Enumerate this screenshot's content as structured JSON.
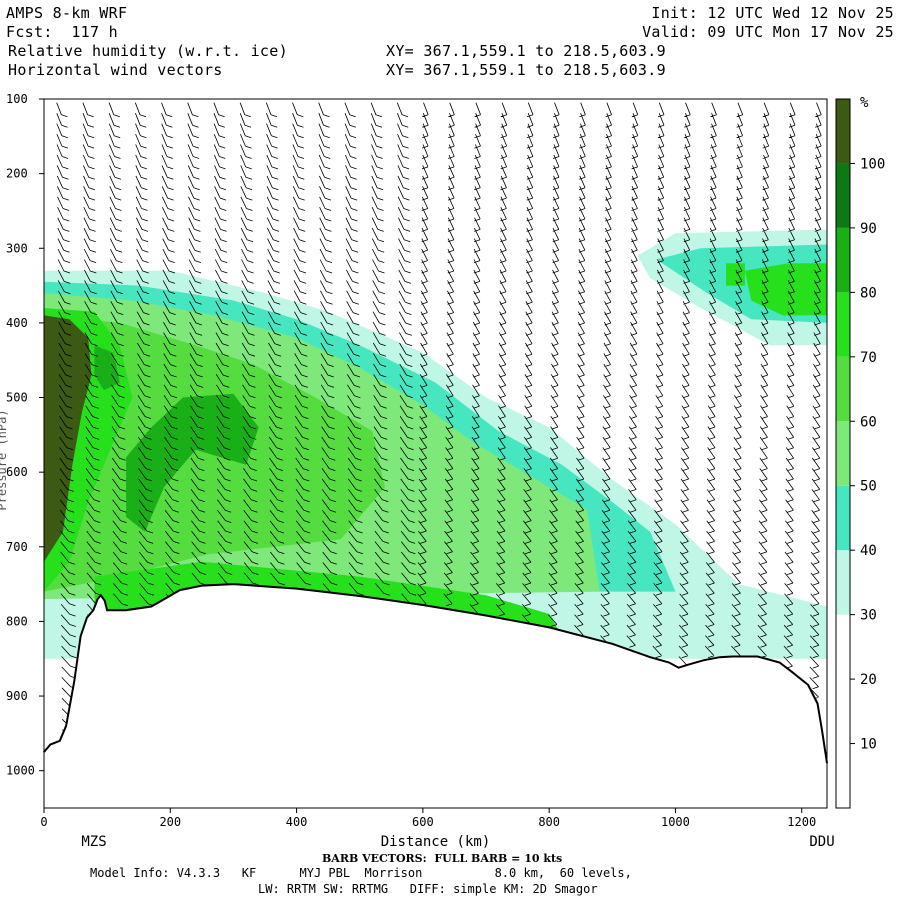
{
  "header": {
    "model": "AMPS 8-km WRF",
    "forecast": "Fcst:  117 h",
    "field1": "Relative humidity (w.r.t. ice)",
    "field2": "Horizontal wind vectors",
    "init": "Init: 12 UTC Wed 12 Nov 25",
    "valid": "Valid: 09 UTC Mon 17 Nov 25",
    "xy1": "XY= 367.1,559.1 to 218.5,603.9",
    "xy2": "XY= 367.1,559.1 to 218.5,603.9"
  },
  "footer": {
    "barb": "BARB VECTORS:  FULL BARB = 10 kts",
    "model_info": "Model Info: V4.3.3   KF      MYJ PBL  Morrison          8.0 km,  60 levels,",
    "physics": "LW: RRTM SW: RRTMG   DIFF: simple KM: 2D Smagor"
  },
  "colors": {
    "background": "#ffffff",
    "terrain_line": "#000000",
    "barbs": "#000000"
  },
  "chart_data": {
    "type": "heatmap",
    "title": "Relative humidity (w.r.t. ice)",
    "xlabel": "Distance (km)",
    "ylabel": "Pressure (hPa)",
    "xlim": [
      0,
      1240
    ],
    "ylim": [
      1050,
      100
    ],
    "x_ticks": [
      0,
      200,
      400,
      600,
      800,
      1000,
      1200
    ],
    "y_ticks": [
      100,
      200,
      300,
      400,
      500,
      600,
      700,
      800,
      900,
      1000
    ],
    "endpoint_labels": [
      "MZS",
      "DDU"
    ],
    "colorbar": {
      "unit": "%",
      "ticks": [
        10,
        20,
        30,
        40,
        50,
        60,
        70,
        80,
        90,
        100
      ],
      "levels": [
        {
          "min": 30,
          "max": 40,
          "color": "#bff6e5"
        },
        {
          "min": 40,
          "max": 50,
          "color": "#46e6c1"
        },
        {
          "min": 50,
          "max": 60,
          "color": "#7ee87a"
        },
        {
          "min": 60,
          "max": 70,
          "color": "#55dd40"
        },
        {
          "min": 70,
          "max": 80,
          "color": "#25e01a"
        },
        {
          "min": 80,
          "max": 90,
          "color": "#18b016"
        },
        {
          "min": 90,
          "max": 100,
          "color": "#0c7a12"
        },
        {
          "min": 100,
          "max": 110,
          "color": "#3c5a14"
        }
      ]
    },
    "terrain_profile": [
      [
        0,
        975
      ],
      [
        10,
        965
      ],
      [
        25,
        960
      ],
      [
        35,
        940
      ],
      [
        48,
        880
      ],
      [
        58,
        820
      ],
      [
        68,
        795
      ],
      [
        78,
        785
      ],
      [
        85,
        770
      ],
      [
        90,
        765
      ],
      [
        96,
        772
      ],
      [
        100,
        785
      ],
      [
        130,
        785
      ],
      [
        170,
        780
      ],
      [
        195,
        768
      ],
      [
        215,
        758
      ],
      [
        250,
        752
      ],
      [
        300,
        750
      ],
      [
        400,
        756
      ],
      [
        500,
        766
      ],
      [
        600,
        778
      ],
      [
        700,
        792
      ],
      [
        800,
        808
      ],
      [
        900,
        830
      ],
      [
        960,
        848
      ],
      [
        990,
        855
      ],
      [
        1005,
        862
      ],
      [
        1020,
        858
      ],
      [
        1045,
        852
      ],
      [
        1070,
        848
      ],
      [
        1090,
        847
      ],
      [
        1130,
        847
      ],
      [
        1165,
        855
      ],
      [
        1185,
        868
      ],
      [
        1210,
        885
      ],
      [
        1225,
        910
      ],
      [
        1232,
        945
      ],
      [
        1240,
        990
      ]
    ],
    "rh_regions": [
      {
        "rh": 35,
        "label": "moist layer above terrain",
        "polygon": [
          [
            0,
            330
          ],
          [
            200,
            330
          ],
          [
            350,
            360
          ],
          [
            450,
            385
          ],
          [
            600,
            440
          ],
          [
            700,
            500
          ],
          [
            800,
            540
          ],
          [
            900,
            610
          ],
          [
            1000,
            670
          ],
          [
            1100,
            750
          ],
          [
            1240,
            780
          ],
          [
            1240,
            850
          ],
          [
            0,
            850
          ]
        ]
      },
      {
        "rh": 35,
        "label": "upper moist layer right",
        "polygon": [
          [
            940,
            310
          ],
          [
            1000,
            280
          ],
          [
            1240,
            275
          ],
          [
            1240,
            430
          ],
          [
            1150,
            430
          ],
          [
            1040,
            380
          ],
          [
            960,
            340
          ]
        ]
      },
      {
        "rh": 45,
        "label": "mid layer",
        "polygon": [
          [
            0,
            345
          ],
          [
            150,
            350
          ],
          [
            300,
            370
          ],
          [
            400,
            395
          ],
          [
            500,
            430
          ],
          [
            620,
            480
          ],
          [
            720,
            545
          ],
          [
            820,
            590
          ],
          [
            900,
            640
          ],
          [
            960,
            680
          ],
          [
            1000,
            760
          ],
          [
            0,
            760
          ]
        ]
      },
      {
        "rh": 45,
        "label": "upper right",
        "polygon": [
          [
            970,
            315
          ],
          [
            1040,
            300
          ],
          [
            1240,
            295
          ],
          [
            1240,
            400
          ],
          [
            1120,
            395
          ],
          [
            1050,
            360
          ]
        ]
      },
      {
        "rh": 55,
        "label": "core",
        "polygon": [
          [
            0,
            360
          ],
          [
            140,
            370
          ],
          [
            270,
            390
          ],
          [
            400,
            420
          ],
          [
            500,
            460
          ],
          [
            600,
            510
          ],
          [
            680,
            560
          ],
          [
            780,
            610
          ],
          [
            860,
            650
          ],
          [
            880,
            760
          ],
          [
            0,
            770
          ]
        ]
      },
      {
        "rh": 75,
        "label": "upper right core",
        "polygon": [
          [
            1110,
            330
          ],
          [
            1180,
            320
          ],
          [
            1240,
            320
          ],
          [
            1240,
            390
          ],
          [
            1170,
            390
          ],
          [
            1120,
            370
          ]
        ]
      },
      {
        "rh": 65,
        "label": "wedge",
        "polygon": [
          [
            0,
            390
          ],
          [
            120,
            400
          ],
          [
            240,
            430
          ],
          [
            330,
            455
          ],
          [
            430,
            500
          ],
          [
            520,
            545
          ],
          [
            540,
            620
          ],
          [
            470,
            690
          ],
          [
            260,
            710
          ],
          [
            120,
            740
          ],
          [
            0,
            760
          ]
        ]
      },
      {
        "rh": 75,
        "label": "near surface band",
        "polygon": [
          [
            80,
            740
          ],
          [
            250,
            720
          ],
          [
            500,
            740
          ],
          [
            700,
            765
          ],
          [
            800,
            790
          ],
          [
            820,
            820
          ],
          [
            600,
            808
          ],
          [
            400,
            790
          ],
          [
            200,
            790
          ],
          [
            80,
            800
          ]
        ]
      },
      {
        "rh": 75,
        "label": "left column",
        "polygon": [
          [
            0,
            380
          ],
          [
            80,
            385
          ],
          [
            120,
            430
          ],
          [
            140,
            500
          ],
          [
            110,
            560
          ],
          [
            70,
            640
          ],
          [
            40,
            720
          ],
          [
            0,
            760
          ]
        ]
      },
      {
        "rh": 85,
        "label": "arc",
        "polygon": [
          [
            130,
            580
          ],
          [
            170,
            540
          ],
          [
            220,
            500
          ],
          [
            300,
            495
          ],
          [
            340,
            540
          ],
          [
            320,
            590
          ],
          [
            240,
            570
          ],
          [
            190,
            620
          ],
          [
            160,
            680
          ],
          [
            130,
            660
          ]
        ]
      },
      {
        "rh": 105,
        "label": "left column peak",
        "polygon": [
          [
            0,
            390
          ],
          [
            40,
            395
          ],
          [
            70,
            420
          ],
          [
            75,
            470
          ],
          [
            60,
            520
          ],
          [
            45,
            590
          ],
          [
            30,
            680
          ],
          [
            0,
            720
          ]
        ]
      },
      {
        "rh": 85,
        "label": "arc core",
        "polygon": [
          [
            160,
            590
          ],
          [
            200,
            545
          ],
          [
            260,
            530
          ],
          [
            300,
            545
          ],
          [
            290,
            570
          ],
          [
            230,
            560
          ],
          [
            190,
            600
          ],
          [
            170,
            650
          ]
        ]
      },
      {
        "rh": 85,
        "label": "left small",
        "polygon": [
          [
            80,
            430
          ],
          [
            110,
            440
          ],
          [
            120,
            480
          ],
          [
            95,
            490
          ],
          [
            80,
            470
          ]
        ]
      },
      {
        "rh": 75,
        "label": "small right",
        "polygon": [
          [
            1080,
            320
          ],
          [
            1110,
            320
          ],
          [
            1110,
            350
          ],
          [
            1080,
            350
          ]
        ]
      }
    ]
  }
}
